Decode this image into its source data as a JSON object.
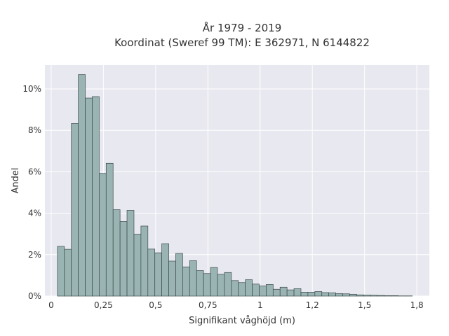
{
  "chart_data": {
    "type": "bar",
    "title": "År 1979 - 2019",
    "subtitle": "Koordinat (Sweref 99 TM): E 362971, N 6144822",
    "xlabel": "Signifikant våghöjd (m)",
    "ylabel": "Andel",
    "xlim": [
      -0.03,
      1.81
    ],
    "ylim": [
      0,
      0.1115
    ],
    "x_ticks": [
      0,
      0.25,
      0.5,
      0.75,
      1,
      1.25,
      1.5,
      1.75
    ],
    "x_tick_labels": [
      "0",
      "0,25",
      "0,5",
      "0,75",
      "1",
      "1,2",
      "1,5",
      "1,8"
    ],
    "y_ticks": [
      0,
      0.02,
      0.04,
      0.06,
      0.08,
      0.1
    ],
    "y_tick_labels": [
      "0%",
      "2%",
      "4%",
      "6%",
      "8%",
      "10%"
    ],
    "grid": true,
    "bin_width": 0.0333,
    "bin_start": 0.03,
    "values": [
      0.024,
      0.0226,
      0.0833,
      0.1069,
      0.0956,
      0.0963,
      0.0592,
      0.0641,
      0.0417,
      0.036,
      0.0414,
      0.0299,
      0.0338,
      0.0227,
      0.0209,
      0.0253,
      0.0169,
      0.0206,
      0.0141,
      0.0171,
      0.0123,
      0.0109,
      0.0138,
      0.0105,
      0.0114,
      0.0075,
      0.0065,
      0.0079,
      0.0058,
      0.0049,
      0.0056,
      0.0033,
      0.0043,
      0.003,
      0.0036,
      0.0019,
      0.0019,
      0.0022,
      0.0017,
      0.0016,
      0.0012,
      0.0011,
      0.0009,
      0.0006,
      0.0005,
      0.0004,
      0.0003,
      0.0002,
      0.0002,
      0.0001,
      0.0001
    ],
    "colors": {
      "bar_fill": "#9ab4b4",
      "bar_stroke": "#3a4a48",
      "plot_bg": "#e8e8f0",
      "grid": "#ffffff"
    }
  }
}
